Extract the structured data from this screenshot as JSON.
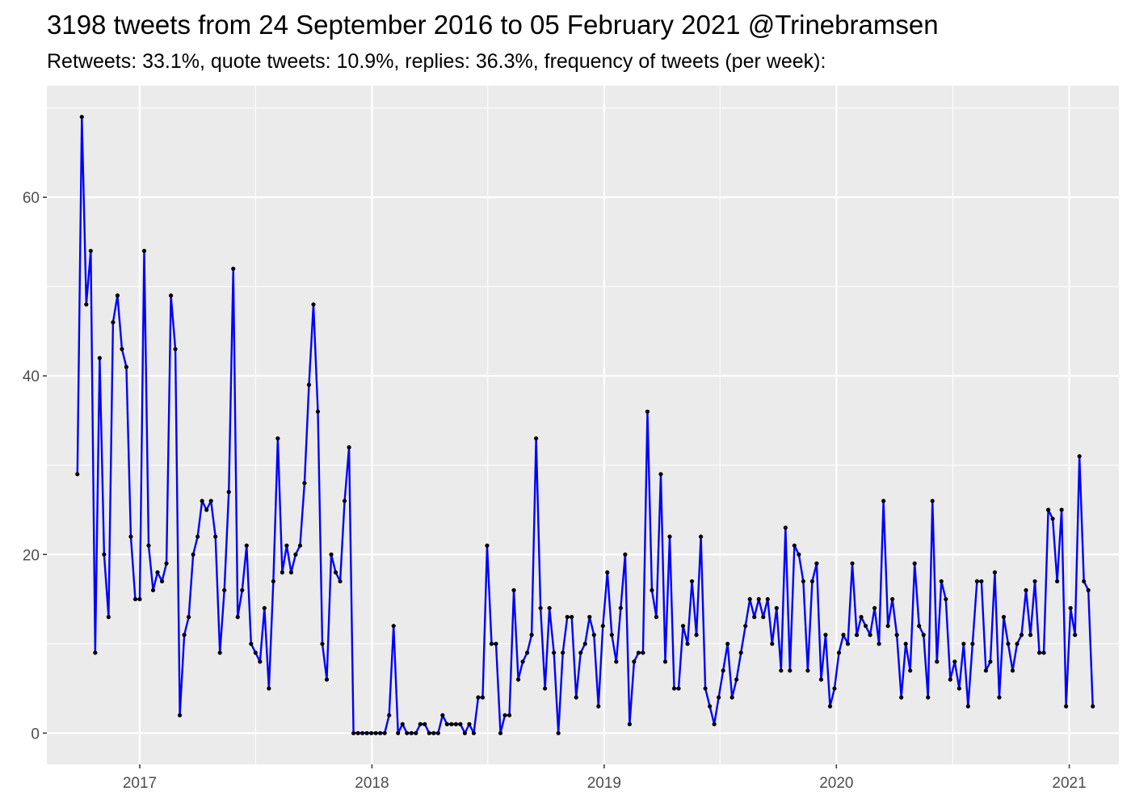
{
  "chart_data": {
    "type": "line",
    "title": "3198 tweets from 24 September 2016 to 05 February 2021 @Trinebramsen",
    "subtitle": "Retweets: 33.1%, quote tweets: 10.9%, replies: 36.3%, frequency of tweets (per week):",
    "xlabel": "",
    "ylabel": "",
    "x_ticks": [
      "2017",
      "2018",
      "2019",
      "2020",
      "2021"
    ],
    "y_ticks": [
      0,
      20,
      40,
      60
    ],
    "xlim": [
      "2016-08-08",
      "2021-03-20"
    ],
    "ylim": [
      -3.5,
      72.5
    ],
    "grid": true,
    "line_color": "#0000FF",
    "point_color": "#000000",
    "panel_background": "#EBEBEB",
    "series": [
      {
        "start_date": "2016-09-25",
        "interval_days": 7,
        "values": [
          29,
          69,
          48,
          54,
          9,
          42,
          20,
          13,
          46,
          49,
          43,
          41,
          22,
          15,
          15,
          54,
          21,
          16,
          18,
          17,
          19,
          49,
          43,
          2,
          11,
          13,
          20,
          22,
          26,
          25,
          26,
          22,
          9,
          16,
          27,
          52,
          13,
          16,
          21,
          10,
          9,
          8,
          14,
          5,
          17,
          33,
          18,
          21,
          18,
          20,
          21,
          28,
          39,
          48,
          36,
          10,
          6,
          20,
          18,
          17,
          26,
          32,
          0,
          0,
          0,
          0,
          0,
          0,
          0,
          0,
          2,
          12,
          0,
          1,
          0,
          0,
          0,
          1,
          1,
          0,
          0,
          0,
          2,
          1,
          1,
          1,
          1,
          0,
          1,
          0,
          4,
          4,
          21,
          10,
          10,
          0,
          2,
          2,
          16,
          6,
          8,
          9,
          11,
          33,
          14,
          5,
          14,
          9,
          0,
          9,
          13,
          13,
          4,
          9,
          10,
          13,
          11,
          3,
          12,
          18,
          11,
          8,
          14,
          20,
          1,
          8,
          9,
          9,
          36,
          16,
          13,
          29,
          8,
          22,
          5,
          5,
          12,
          10,
          17,
          11,
          22,
          5,
          3,
          1,
          4,
          7,
          10,
          4,
          6,
          9,
          12,
          15,
          13,
          15,
          13,
          15,
          10,
          14,
          7,
          23,
          7,
          21,
          20,
          17,
          7,
          17,
          19,
          6,
          11,
          3,
          5,
          9,
          11,
          10,
          19,
          11,
          13,
          12,
          11,
          14,
          10,
          26,
          12,
          15,
          11,
          4,
          10,
          7,
          19,
          12,
          11,
          4,
          26,
          8,
          17,
          15,
          6,
          8,
          5,
          10,
          3,
          10,
          17,
          17,
          7,
          8,
          18,
          4,
          13,
          10,
          7,
          10,
          11,
          16,
          11,
          17,
          9,
          9,
          25,
          24,
          17,
          25,
          3,
          14,
          11,
          31,
          17,
          16,
          3
        ]
      }
    ]
  }
}
